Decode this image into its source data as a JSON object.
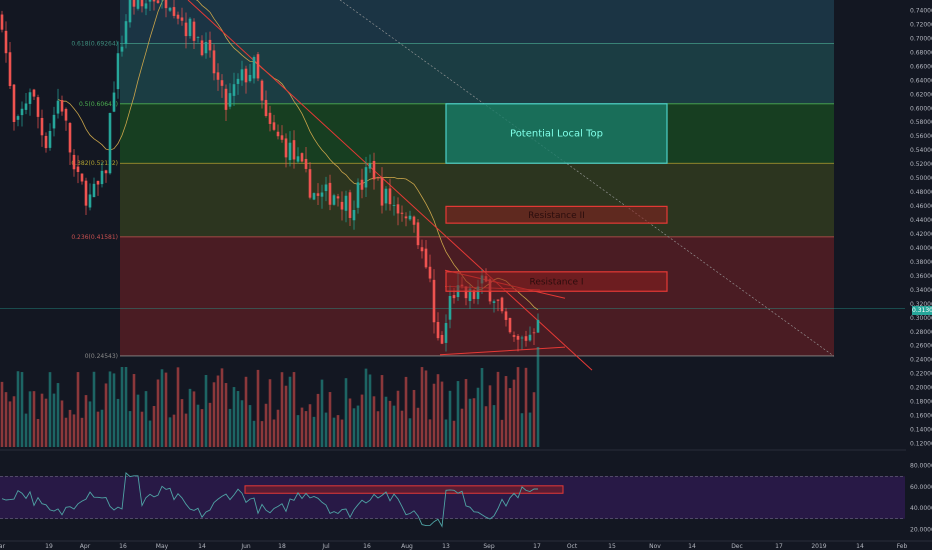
{
  "chart_data": {
    "type": "candlestick",
    "title": "",
    "price_axis": {
      "ticks": [
        "0.74000",
        "0.72000",
        "0.70000",
        "0.68000",
        "0.66000",
        "0.64000",
        "0.62000",
        "0.60000",
        "0.58000",
        "0.56000",
        "0.54000",
        "0.52000",
        "0.50000",
        "0.48000",
        "0.46000",
        "0.44000",
        "0.42000",
        "0.40000",
        "0.38000",
        "0.36000",
        "0.34000",
        "0.32000",
        "0.30000",
        "0.28000",
        "0.26000",
        "0.24000",
        "0.22000",
        "0.20000",
        "0.18000",
        "0.16000",
        "0.14000",
        "0.12000"
      ],
      "range": [
        0.115,
        0.755
      ],
      "last_price": 0.313,
      "last_price_label": "0.31300"
    },
    "time_axis": {
      "ticks": [
        "ar",
        "19",
        "Apr",
        "16",
        "May",
        "14",
        "Jun",
        "18",
        "Jul",
        "16",
        "Aug",
        "13",
        "Sep",
        "17",
        "Oct",
        "15",
        "Nov",
        "14",
        "Dec",
        "17",
        "2019",
        "14",
        "Feb"
      ]
    },
    "fib_levels": [
      {
        "label": "0.618(0.69264)",
        "price": 0.6926
      },
      {
        "label": "0.5(0.60641)",
        "price": 0.6064
      },
      {
        "label": "0.382(0.52132)",
        "price": 0.5213
      },
      {
        "label": "0.236(0.41581)",
        "price": 0.4158
      },
      {
        "label": "0(0.24543)",
        "price": 0.2454
      }
    ],
    "annotations": [
      {
        "label": "Potential Local Top",
        "price_top": 0.6064,
        "price_bottom": 0.5213,
        "color": "#26a69a"
      },
      {
        "label": "Resistance II",
        "price_top": 0.4595,
        "price_bottom": 0.4355,
        "color": "#e53935"
      },
      {
        "label": "Resistance I",
        "price_top": 0.3658,
        "price_bottom": 0.338,
        "color": "#e53935"
      }
    ],
    "oscillator": {
      "ticks": [
        "80.0000",
        "60.0000",
        "40.0000",
        "20.0000"
      ],
      "range": [
        10,
        90
      ],
      "upper_band": 70,
      "lower_band": 30,
      "resistance_zone": [
        54,
        61
      ]
    },
    "colors": {
      "up": "#26a69a",
      "down": "#ef5350",
      "background": "#131722",
      "fib_green": "#1b5e20",
      "fib_red": "#5d1f24",
      "fib_teal": "#1f4b4f",
      "oscillator_line": "#4fa3a5"
    }
  }
}
